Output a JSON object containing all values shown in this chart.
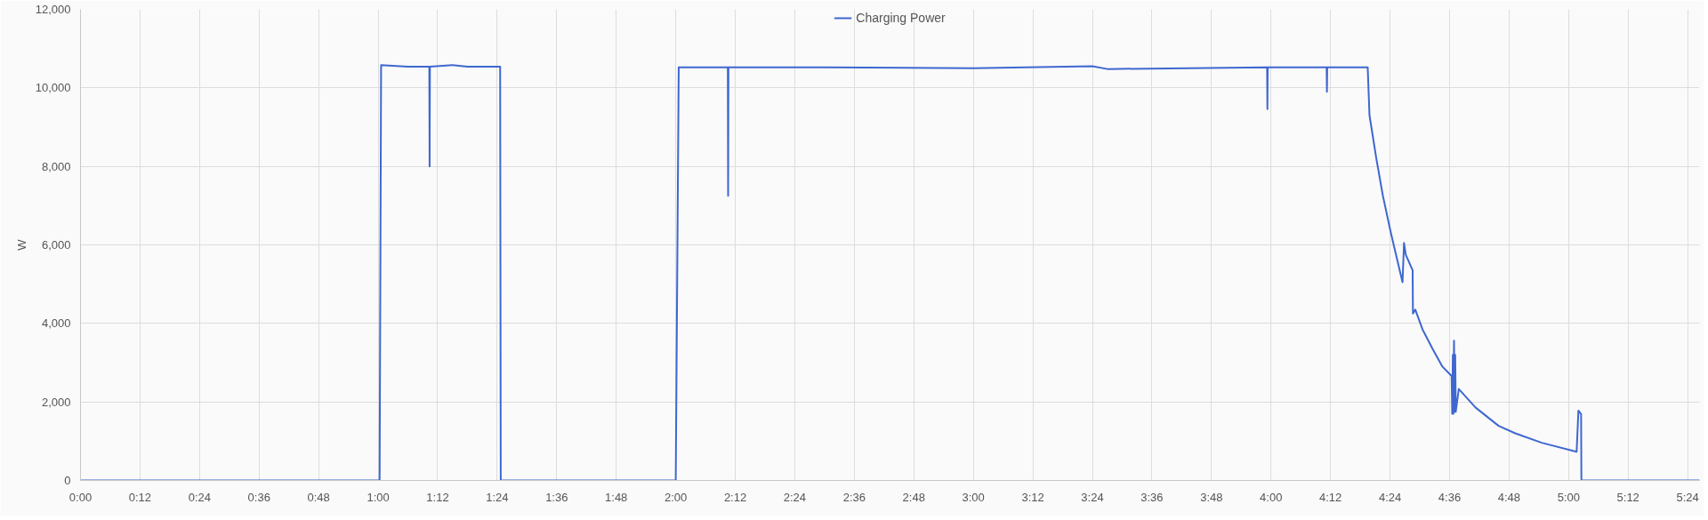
{
  "chart_data": {
    "type": "line",
    "ylabel": "W",
    "legend": "top",
    "grid": true,
    "xlim": [
      0,
      5.44
    ],
    "ylim": [
      0,
      12000
    ],
    "yticks": [
      {
        "value": 0,
        "label": "0"
      },
      {
        "value": 2000,
        "label": "2,000"
      },
      {
        "value": 4000,
        "label": "4,000"
      },
      {
        "value": 6000,
        "label": "6,000"
      },
      {
        "value": 8000,
        "label": "8,000"
      },
      {
        "value": 10000,
        "label": "10,000"
      },
      {
        "value": 12000,
        "label": "12,000"
      }
    ],
    "xticks": [
      {
        "value": 0,
        "label": "0:00"
      },
      {
        "value": 0.2,
        "label": "0:12"
      },
      {
        "value": 0.4,
        "label": "0:24"
      },
      {
        "value": 0.6,
        "label": "0:36"
      },
      {
        "value": 0.8,
        "label": "0:48"
      },
      {
        "value": 1,
        "label": "1:00"
      },
      {
        "value": 1.2,
        "label": "1:12"
      },
      {
        "value": 1.4,
        "label": "1:24"
      },
      {
        "value": 1.6,
        "label": "1:36"
      },
      {
        "value": 1.8,
        "label": "1:48"
      },
      {
        "value": 2,
        "label": "2:00"
      },
      {
        "value": 2.2,
        "label": "2:12"
      },
      {
        "value": 2.4,
        "label": "2:24"
      },
      {
        "value": 2.6,
        "label": "2:36"
      },
      {
        "value": 2.8,
        "label": "2:48"
      },
      {
        "value": 3,
        "label": "3:00"
      },
      {
        "value": 3.2,
        "label": "3:12"
      },
      {
        "value": 3.4,
        "label": "3:24"
      },
      {
        "value": 3.6,
        "label": "3:36"
      },
      {
        "value": 3.8,
        "label": "3:48"
      },
      {
        "value": 4,
        "label": "4:00"
      },
      {
        "value": 4.2,
        "label": "4:12"
      },
      {
        "value": 4.4,
        "label": "4:24"
      },
      {
        "value": 4.6,
        "label": "4:36"
      },
      {
        "value": 4.8,
        "label": "4:48"
      },
      {
        "value": 5,
        "label": "5:00"
      },
      {
        "value": 5.2,
        "label": "5:12"
      },
      {
        "value": 5.4,
        "label": "5:24"
      }
    ],
    "series": [
      {
        "name": "Charging Power",
        "color": "#3f67d0",
        "x": [
          0,
          1.005,
          1.01,
          1.1,
          1.172,
          1.173,
          1.174,
          1.25,
          1.3,
          1.41,
          1.412,
          2.0,
          2.01,
          2.1,
          2.175,
          2.176,
          2.177,
          2.5,
          3.0,
          3.4,
          3.45,
          3.987,
          3.988,
          3.989,
          4.187,
          4.188,
          4.189,
          4.325,
          4.331,
          4.354,
          4.376,
          4.403,
          4.442,
          4.447,
          4.453,
          4.476,
          4.477,
          4.485,
          4.509,
          4.543,
          4.576,
          4.607,
          4.609,
          4.611,
          4.613,
          4.615,
          4.617,
          4.619,
          4.621,
          4.631,
          4.687,
          4.765,
          4.821,
          4.91,
          5.027,
          5.033,
          5.042,
          5.043,
          5.44
        ],
        "values": [
          0,
          0,
          10580,
          10540,
          10540,
          8000,
          10540,
          10580,
          10540,
          10540,
          0,
          0,
          10520,
          10520,
          10520,
          7250,
          10520,
          10520,
          10500,
          10550,
          10480,
          10520,
          9460,
          10520,
          10520,
          9900,
          10520,
          10520,
          9300,
          8200,
          7250,
          6300,
          5050,
          6050,
          5750,
          5350,
          4250,
          4350,
          3850,
          3350,
          2900,
          2660,
          1700,
          3200,
          1700,
          3560,
          1750,
          3200,
          1750,
          2330,
          1860,
          1390,
          1200,
          960,
          730,
          1780,
          1690,
          0,
          0
        ]
      }
    ]
  }
}
